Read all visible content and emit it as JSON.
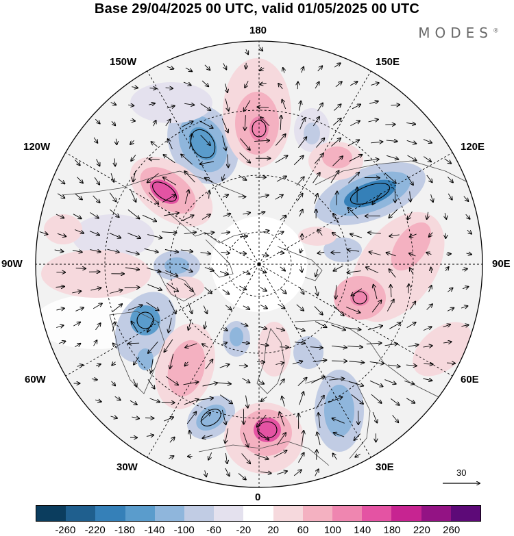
{
  "title": "Base 29/04/2025 00 UTC, valid 01/05/2025 00 UTC",
  "logo": "MODES",
  "logo_mark": "®",
  "longitude_labels": {
    "n180": "180",
    "w150": "150W",
    "e150": "150E",
    "w120": "120W",
    "e120": "120E",
    "w90": "90W",
    "e90": "90E",
    "w60": "60W",
    "e60": "60E",
    "w30": "30W",
    "e30": "30E",
    "s0": "0"
  },
  "reference_vector": {
    "label": "30"
  },
  "colorbar": {
    "tick_labels": [
      "-260",
      "-220",
      "-180",
      "-140",
      "-100",
      "-60",
      "-20",
      "20",
      "60",
      "100",
      "140",
      "180",
      "220",
      "260"
    ],
    "colors": [
      "#0b3d5e",
      "#1f5f8e",
      "#3580b8",
      "#5a9ccc",
      "#8fb6dc",
      "#c1cce4",
      "#e4e1ee",
      "#ffffff",
      "#f6d9dd",
      "#f4b1c1",
      "#ef86b0",
      "#e453a3",
      "#c72491",
      "#931384",
      "#5d0a78"
    ]
  },
  "map_colors": {
    "ocean_background": "#ffffff",
    "neutral_fill": "#eeeeee",
    "coastline": "#444444",
    "graticule": "#000000"
  }
}
